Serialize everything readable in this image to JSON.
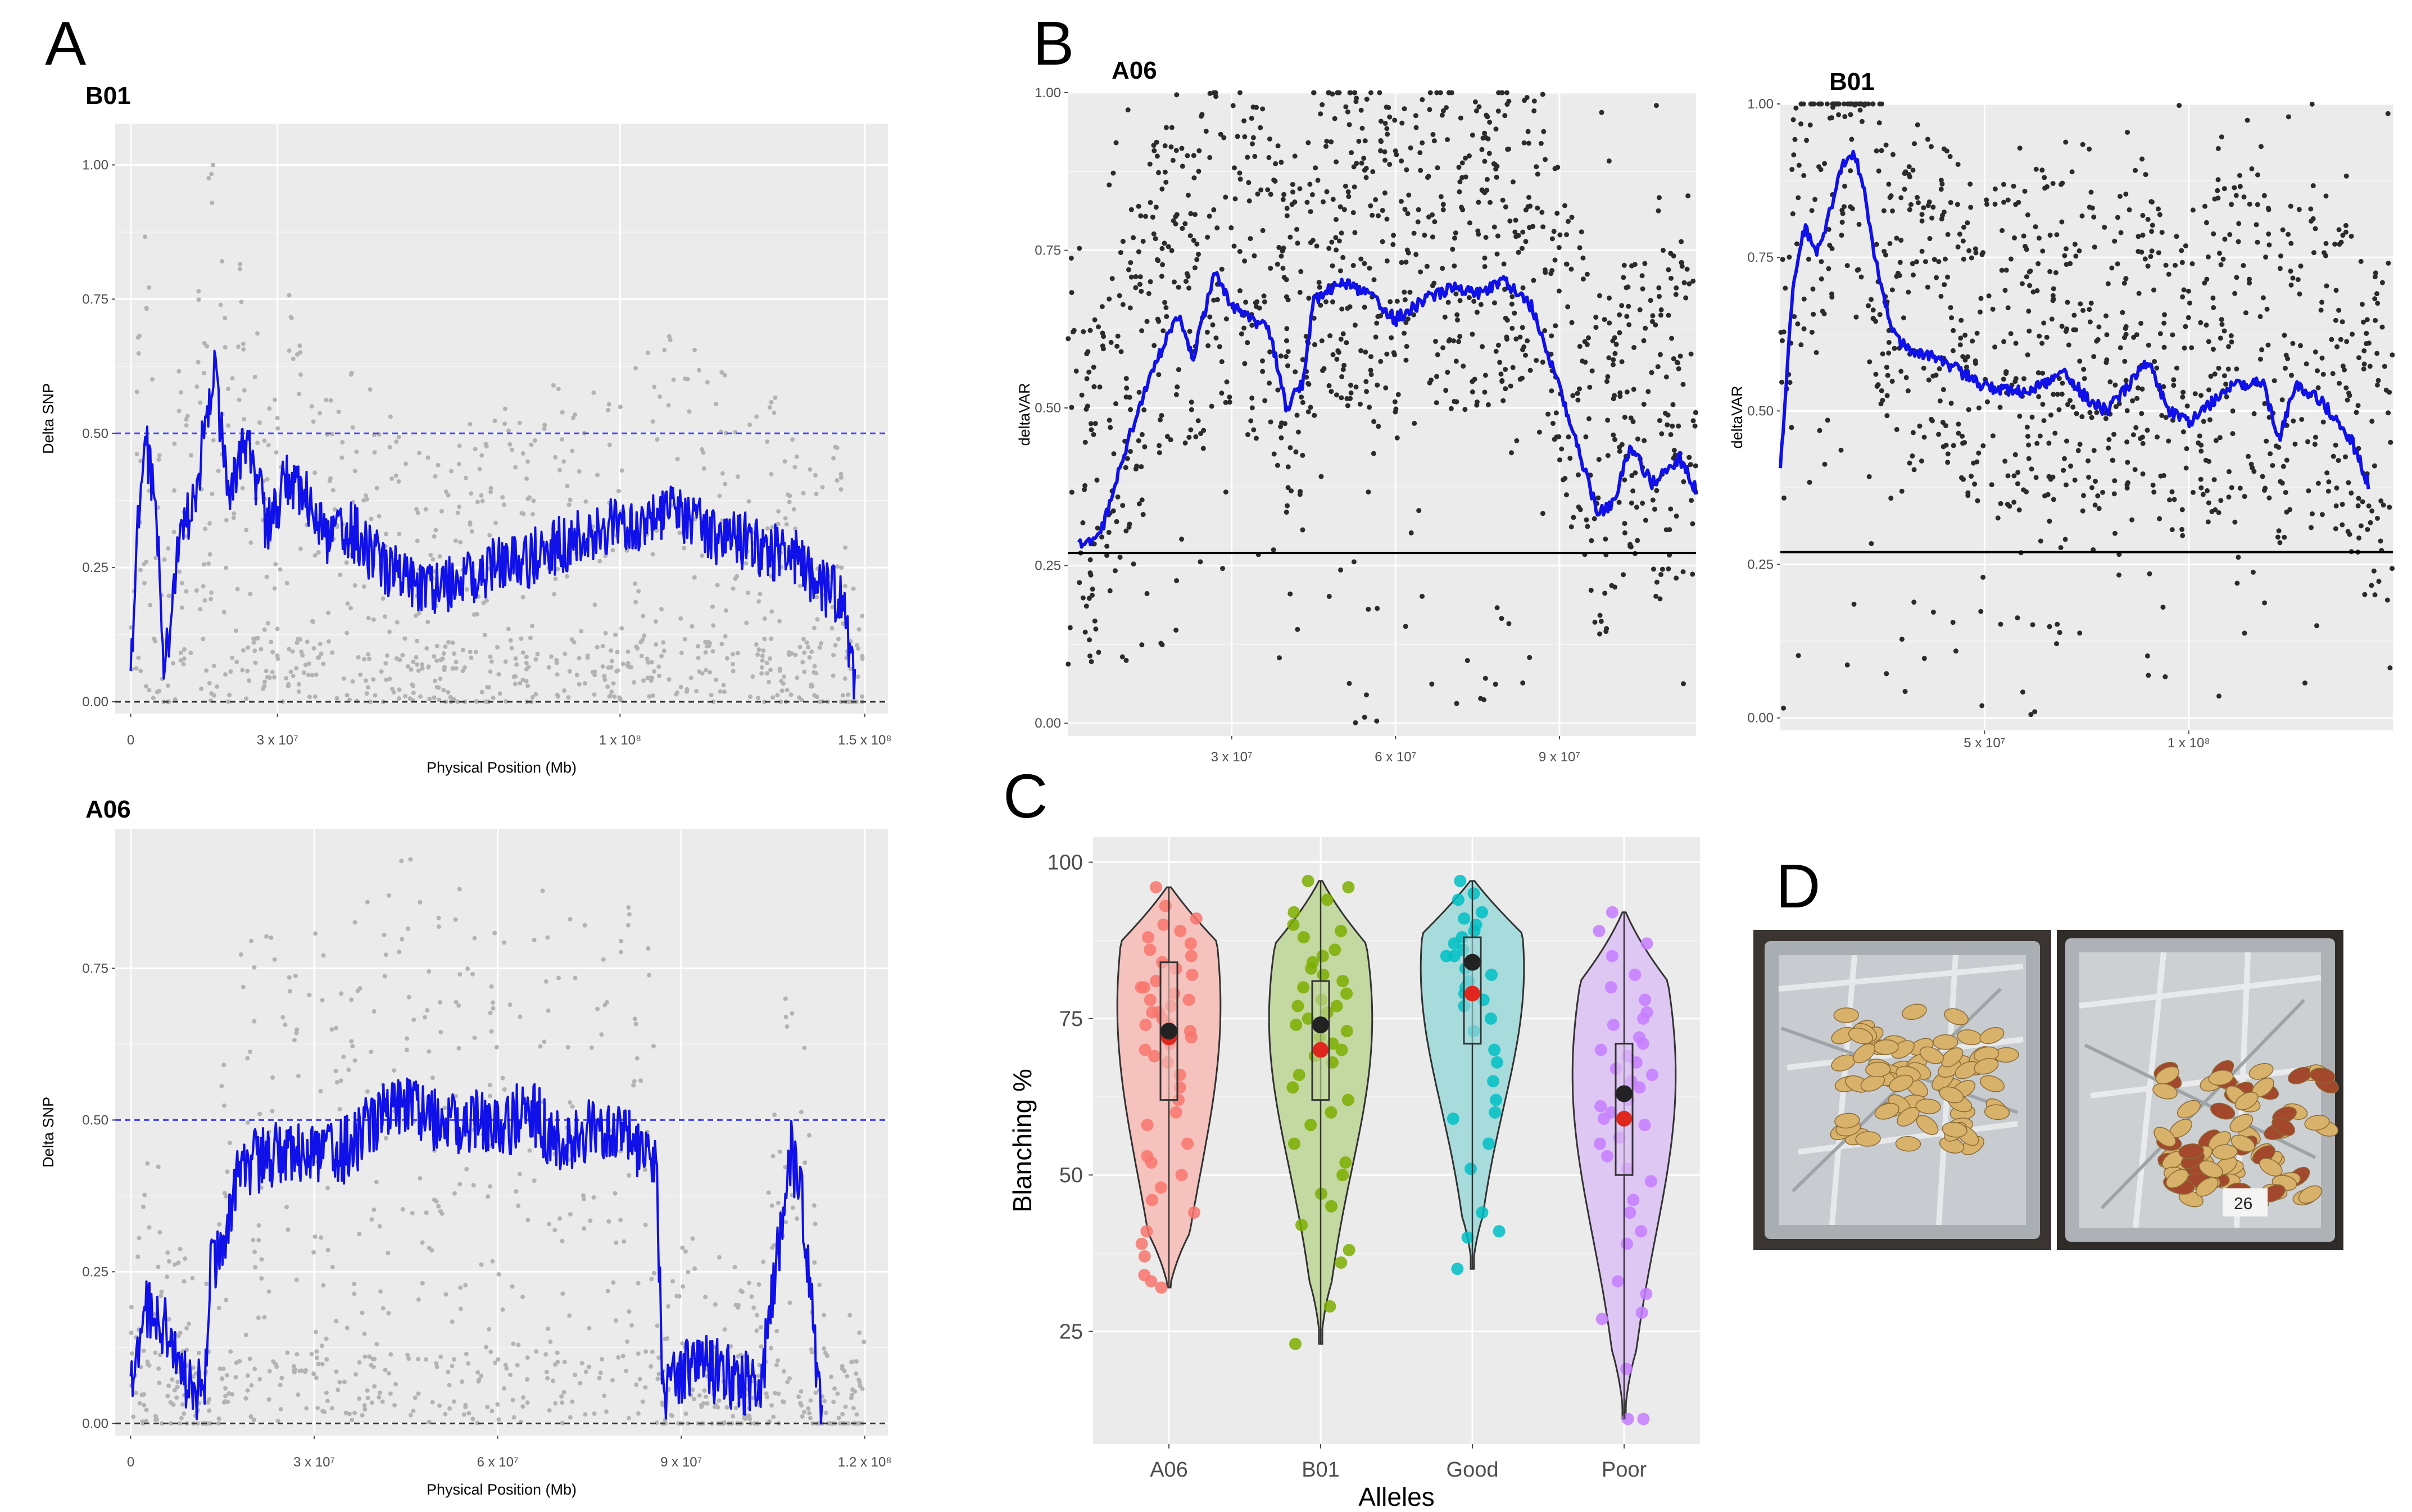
{
  "panel_labels": {
    "a": "A",
    "b": "B",
    "c": "C",
    "d": "D"
  },
  "chart_data": [
    {
      "id": "A_B01",
      "type": "scatter",
      "title": "B01",
      "xlabel": "Physical Position (Mb)",
      "ylabel": "Delta SNP",
      "xlim": [
        0,
        150000000
      ],
      "ylim": [
        0,
        1.0
      ],
      "xticks": [
        0,
        30000000,
        100000000,
        150000000
      ],
      "xtick_labels": [
        "0",
        "3 x 10⁷",
        "1 x 10⁸",
        "1.5 x 10⁸"
      ],
      "yticks": [
        0,
        0.25,
        0.5,
        0.75,
        1.0
      ],
      "ytick_labels": [
        "0.00",
        "0.25",
        "0.50",
        "0.75",
        "1.00"
      ],
      "threshold": 0.5,
      "line_anchors": [
        [
          0,
          0.02
        ],
        [
          1500000,
          0.35
        ],
        [
          3000000,
          0.48
        ],
        [
          5000000,
          0.4
        ],
        [
          7000000,
          0.05
        ],
        [
          10000000,
          0.32
        ],
        [
          13000000,
          0.38
        ],
        [
          17000000,
          0.62
        ],
        [
          20000000,
          0.4
        ],
        [
          24000000,
          0.48
        ],
        [
          28000000,
          0.32
        ],
        [
          32000000,
          0.42
        ],
        [
          36000000,
          0.38
        ],
        [
          40000000,
          0.3
        ],
        [
          45000000,
          0.32
        ],
        [
          52000000,
          0.25
        ],
        [
          60000000,
          0.2
        ],
        [
          70000000,
          0.24
        ],
        [
          80000000,
          0.26
        ],
        [
          90000000,
          0.3
        ],
        [
          100000000,
          0.33
        ],
        [
          105000000,
          0.32
        ],
        [
          110000000,
          0.36
        ],
        [
          115000000,
          0.34
        ],
        [
          120000000,
          0.3
        ],
        [
          125000000,
          0.3
        ],
        [
          130000000,
          0.28
        ],
        [
          135000000,
          0.28
        ],
        [
          140000000,
          0.22
        ],
        [
          145000000,
          0.2
        ],
        [
          148000000,
          0.03
        ]
      ],
      "point_band": [
        0,
        0.65
      ],
      "point_count": 900
    },
    {
      "id": "A_A06",
      "type": "scatter",
      "title": "A06",
      "xlabel": "Physical Position (Mb)",
      "ylabel": "Delta SNP",
      "xlim": [
        0,
        120000000
      ],
      "ylim": [
        0,
        0.95
      ],
      "xticks": [
        0,
        30000000,
        60000000,
        90000000,
        120000000
      ],
      "xtick_labels": [
        "0",
        "3 x 10⁷",
        "6 x 10⁷",
        "9 x 10⁷",
        "1.2 x 10⁸"
      ],
      "yticks": [
        0,
        0.25,
        0.5,
        0.75
      ],
      "ytick_labels": [
        "0.00",
        "0.25",
        "0.50",
        "0.75"
      ],
      "threshold": 0.5,
      "line_anchors": [
        [
          0,
          0.04
        ],
        [
          1500000,
          0.15
        ],
        [
          3000000,
          0.2
        ],
        [
          6000000,
          0.15
        ],
        [
          9000000,
          0.08
        ],
        [
          12000000,
          0.05
        ],
        [
          13000000,
          0.25
        ],
        [
          15000000,
          0.3
        ],
        [
          18000000,
          0.42
        ],
        [
          25000000,
          0.45
        ],
        [
          30000000,
          0.44
        ],
        [
          35000000,
          0.45
        ],
        [
          40000000,
          0.5
        ],
        [
          45000000,
          0.52
        ],
        [
          50000000,
          0.5
        ],
        [
          55000000,
          0.5
        ],
        [
          60000000,
          0.48
        ],
        [
          65000000,
          0.52
        ],
        [
          70000000,
          0.46
        ],
        [
          75000000,
          0.48
        ],
        [
          80000000,
          0.48
        ],
        [
          86000000,
          0.42
        ],
        [
          87000000,
          0.05
        ],
        [
          92000000,
          0.1
        ],
        [
          97000000,
          0.08
        ],
        [
          103000000,
          0.06
        ],
        [
          108000000,
          0.45
        ],
        [
          110000000,
          0.35
        ],
        [
          112000000,
          0.1
        ],
        [
          113000000,
          0.0
        ]
      ],
      "point_band": [
        0,
        0.55
      ],
      "point_count": 850
    },
    {
      "id": "B_A06",
      "type": "scatter",
      "title": "A06",
      "xlabel": "",
      "ylabel": "deltaVAR",
      "xlim": [
        0,
        115000000
      ],
      "ylim": [
        0,
        1.0
      ],
      "xticks": [
        30000000,
        60000000,
        90000000
      ],
      "xtick_labels": [
        "3 x 10⁷",
        "6 x 10⁷",
        "9 x 10⁷"
      ],
      "yticks": [
        0,
        0.25,
        0.5,
        0.75,
        1.0
      ],
      "ytick_labels": [
        "0.00",
        "0.25",
        "0.50",
        "0.75",
        "1.00"
      ],
      "threshold": 0.27,
      "line_anchors": [
        [
          2000000,
          0.28
        ],
        [
          6000000,
          0.3
        ],
        [
          10000000,
          0.42
        ],
        [
          15000000,
          0.55
        ],
        [
          20000000,
          0.65
        ],
        [
          23000000,
          0.58
        ],
        [
          27000000,
          0.72
        ],
        [
          30000000,
          0.66
        ],
        [
          34000000,
          0.64
        ],
        [
          37000000,
          0.62
        ],
        [
          40000000,
          0.5
        ],
        [
          43000000,
          0.54
        ],
        [
          45000000,
          0.67
        ],
        [
          50000000,
          0.7
        ],
        [
          55000000,
          0.68
        ],
        [
          60000000,
          0.64
        ],
        [
          65000000,
          0.67
        ],
        [
          70000000,
          0.69
        ],
        [
          75000000,
          0.68
        ],
        [
          80000000,
          0.7
        ],
        [
          85000000,
          0.66
        ],
        [
          92000000,
          0.48
        ],
        [
          97000000,
          0.33
        ],
        [
          100000000,
          0.35
        ],
        [
          103000000,
          0.44
        ],
        [
          107000000,
          0.38
        ],
        [
          112000000,
          0.42
        ],
        [
          115000000,
          0.37
        ]
      ],
      "point_band": [
        0.5,
        0.95
      ],
      "point_count": 1100
    },
    {
      "id": "B_B01",
      "type": "scatter",
      "title": "B01",
      "xlabel": "",
      "ylabel": "deltaVAR",
      "xlim": [
        0,
        150000000
      ],
      "ylim": [
        0,
        1.0
      ],
      "xticks": [
        50000000,
        100000000
      ],
      "xtick_labels": [
        "5 x 10⁷",
        "1 x 10⁸"
      ],
      "yticks": [
        0,
        0.25,
        0.5,
        0.75,
        1.0
      ],
      "ytick_labels": [
        "0.00",
        "0.25",
        "0.50",
        "0.75",
        "1.00"
      ],
      "threshold": 0.27,
      "line_anchors": [
        [
          0,
          0.4
        ],
        [
          3000000,
          0.7
        ],
        [
          6000000,
          0.8
        ],
        [
          9000000,
          0.76
        ],
        [
          12000000,
          0.82
        ],
        [
          15000000,
          0.9
        ],
        [
          18000000,
          0.92
        ],
        [
          20000000,
          0.88
        ],
        [
          24000000,
          0.72
        ],
        [
          28000000,
          0.62
        ],
        [
          32000000,
          0.6
        ],
        [
          40000000,
          0.58
        ],
        [
          50000000,
          0.54
        ],
        [
          60000000,
          0.53
        ],
        [
          70000000,
          0.56
        ],
        [
          75000000,
          0.52
        ],
        [
          80000000,
          0.5
        ],
        [
          85000000,
          0.54
        ],
        [
          90000000,
          0.58
        ],
        [
          95000000,
          0.5
        ],
        [
          100000000,
          0.48
        ],
        [
          110000000,
          0.54
        ],
        [
          118000000,
          0.55
        ],
        [
          122000000,
          0.45
        ],
        [
          126000000,
          0.54
        ],
        [
          132000000,
          0.52
        ],
        [
          140000000,
          0.45
        ],
        [
          144000000,
          0.38
        ]
      ],
      "point_band": [
        0.3,
        0.95
      ],
      "point_count": 1000
    },
    {
      "id": "C",
      "type": "violin",
      "xlabel": "Alleles",
      "ylabel": "Blanching %",
      "ylim": [
        7,
        104
      ],
      "yticks": [
        25,
        50,
        75,
        100
      ],
      "ytick_labels": [
        "25",
        "50",
        "75",
        "100"
      ],
      "categories": [
        "A06",
        "B01",
        "Good",
        "Poor"
      ],
      "colors": [
        "#F8766D",
        "#7CAE00",
        "#00BFC4",
        "#C77CFF"
      ],
      "fills": [
        "#f5c2bd",
        "#c4d8a2",
        "#a8dbdc",
        "#dfc7f4"
      ],
      "range": [
        [
          32,
          96
        ],
        [
          23,
          97
        ],
        [
          35,
          97
        ],
        [
          11,
          92
        ]
      ],
      "q1": [
        62,
        62,
        71,
        50
      ],
      "median": [
        73,
        71,
        79,
        62
      ],
      "q3": [
        84,
        81,
        88,
        71
      ],
      "mean": [
        73,
        74,
        84,
        63
      ],
      "red_point": [
        72,
        70,
        79,
        59
      ],
      "points": [
        [
          96,
          93,
          91,
          90,
          89,
          88,
          87,
          86,
          85,
          84,
          83,
          82,
          81,
          80,
          80,
          79,
          78,
          78,
          77,
          76,
          76,
          75,
          74,
          74,
          73,
          72,
          71,
          70,
          69,
          68,
          66,
          64,
          62,
          60,
          58,
          55,
          53,
          52,
          50,
          48,
          46,
          44,
          41,
          39,
          37,
          34,
          33,
          32
        ],
        [
          97,
          96,
          94,
          92,
          90,
          89,
          88,
          86,
          85,
          84,
          83,
          82,
          81,
          80,
          79,
          78,
          77,
          77,
          76,
          75,
          74,
          73,
          72,
          71,
          70,
          69,
          68,
          66,
          64,
          62,
          60,
          58,
          55,
          52,
          50,
          47,
          45,
          42,
          38,
          36,
          29,
          23
        ],
        [
          97,
          95,
          94,
          92,
          91,
          90,
          89,
          88,
          87,
          86,
          85,
          85,
          84,
          83,
          82,
          81,
          80,
          79,
          78,
          77,
          75,
          73,
          70,
          68,
          65,
          62,
          60,
          59,
          55,
          51,
          44,
          41,
          40,
          35
        ],
        [
          92,
          89,
          87,
          85,
          82,
          80,
          78,
          76,
          75,
          74,
          72,
          71,
          70,
          69,
          68,
          67,
          66,
          65,
          64,
          63,
          62,
          61,
          60,
          59,
          58,
          56,
          55,
          53,
          51,
          49,
          46,
          44,
          41,
          39,
          33,
          31,
          28,
          27,
          19,
          11,
          11
        ]
      ]
    }
  ],
  "photos": [
    {
      "name": "photo-blanched-tray",
      "label": ""
    },
    {
      "name": "photo-unblanched-tray",
      "label": "26"
    }
  ]
}
